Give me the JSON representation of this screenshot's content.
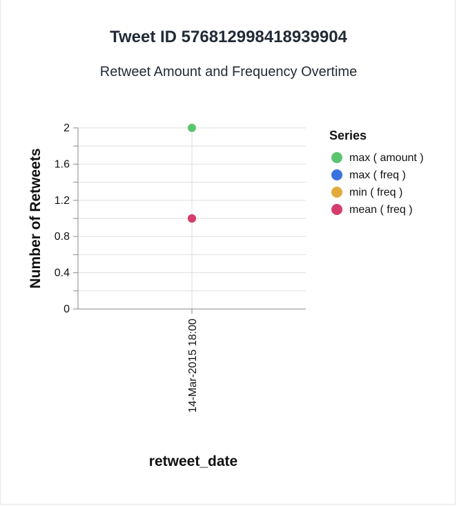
{
  "header": {
    "title": "Tweet ID 576812998418939904",
    "subtitle": "Retweet Amount and Frequency Overtime"
  },
  "chart_data": {
    "type": "scatter",
    "title": "Tweet ID 576812998418939904",
    "subtitle": "Retweet Amount and Frequency Overtime",
    "xlabel": "retweet_date",
    "ylabel": "Number of Retweets",
    "categories": [
      "14-Mar-2015 18:00"
    ],
    "ylim": [
      0,
      2
    ],
    "yticks": [
      "0",
      "0.4",
      "0.8",
      "1.2",
      "1.6",
      "2"
    ],
    "grid": true,
    "legend": {
      "title": "Series",
      "placement": "right"
    },
    "series": [
      {
        "name": "max ( amount )",
        "color": "#5cc46e",
        "values": [
          2
        ]
      },
      {
        "name": "max ( freq )",
        "color": "#3b73dd",
        "values": [
          1
        ]
      },
      {
        "name": "min ( freq )",
        "color": "#e0ab3c",
        "values": [
          1
        ]
      },
      {
        "name": "mean ( freq )",
        "color": "#d63c6c",
        "values": [
          1
        ]
      }
    ]
  }
}
